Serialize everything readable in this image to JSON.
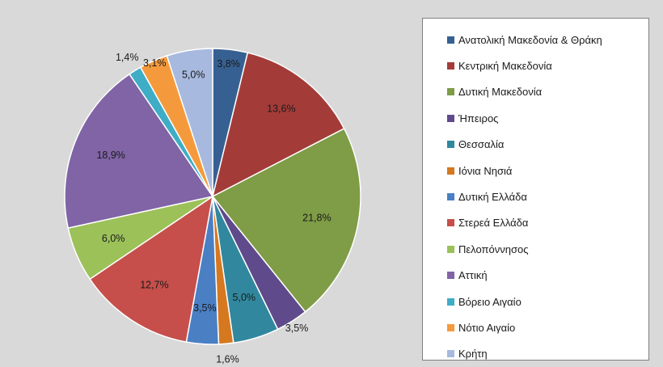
{
  "chart_data": {
    "type": "pie",
    "start_angle_deg": 0,
    "direction": "clockwise",
    "legend_position": "right",
    "slices": [
      {
        "name": "Ανατολική Μακεδονία & Θράκη",
        "value": 3.8,
        "label": "3,8%",
        "color": "#376092"
      },
      {
        "name": "Κεντρική Μακεδονία",
        "value": 13.6,
        "label": "13,6%",
        "color": "#a33c39"
      },
      {
        "name": "Δυτική Μακεδονία",
        "value": 21.8,
        "label": "21,8%",
        "color": "#7f9c46"
      },
      {
        "name": "Ήπειρος",
        "value": 3.5,
        "label": "3,5%",
        "color": "#5f4b8b"
      },
      {
        "name": "Θεσσαλία",
        "value": 5.0,
        "label": "5,0%",
        "color": "#31889e"
      },
      {
        "name": "Ιόνια Νησιά",
        "value": 1.6,
        "label": "1,6%",
        "color": "#d5781f"
      },
      {
        "name": "Δυτική Ελλάδα",
        "value": 3.5,
        "label": "3,5%",
        "color": "#4a7fc4"
      },
      {
        "name": "Στερεά Ελλάδα",
        "value": 12.7,
        "label": "12,7%",
        "color": "#c64f4b"
      },
      {
        "name": "Πελοπόννησος",
        "value": 6.0,
        "label": "6,0%",
        "color": "#9cc159"
      },
      {
        "name": "Αττική",
        "value": 18.9,
        "label": "18,9%",
        "color": "#8064a6"
      },
      {
        "name": "Βόρειο Αιγαίο",
        "value": 1.4,
        "label": "1,4%",
        "color": "#3fadc5"
      },
      {
        "name": "Νότιο Αιγαίο",
        "value": 3.1,
        "label": "3,1%",
        "color": "#f59a3c"
      },
      {
        "name": "Κρήτη",
        "value": 5.0,
        "label": "5,0%",
        "color": "#a7b9de"
      }
    ]
  }
}
